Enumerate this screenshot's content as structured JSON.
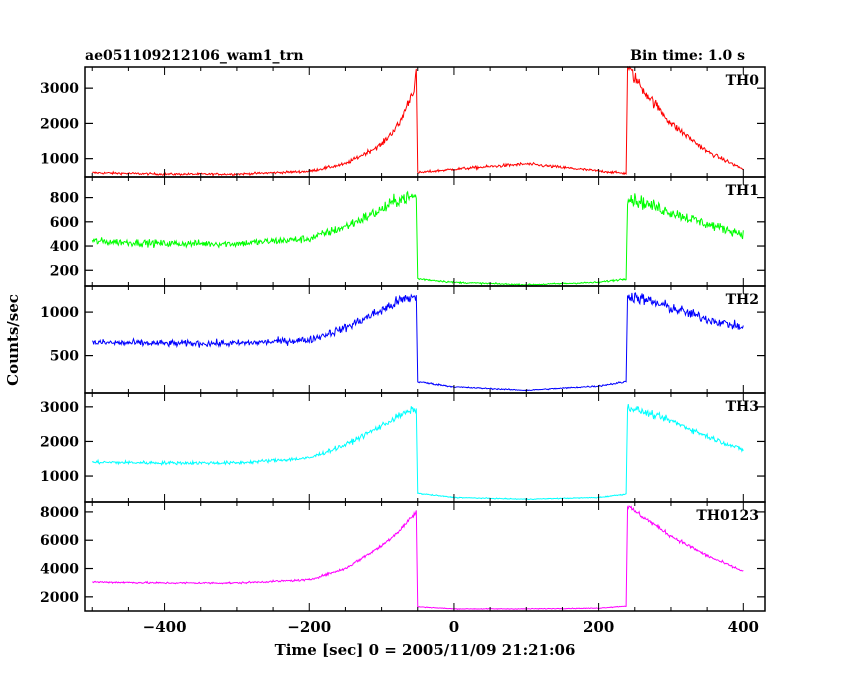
{
  "header": {
    "title": "ae051109212106_wam1_trn",
    "bin_time": "Bin time: 1.0 s"
  },
  "axes": {
    "xlabel": "Time [sec] 0 = 2005/11/09 21:21:06",
    "ylabel": "Counts/sec"
  },
  "chart_data": {
    "type": "line",
    "title": "ae051109212106_wam1_trn",
    "xlabel": "Time [sec] 0 = 2005/11/09 21:21:06",
    "ylabel": "Counts/sec",
    "xlim": [
      -510,
      430
    ],
    "x_ticks": [
      -400,
      -200,
      0,
      200,
      400
    ],
    "x_start": -500,
    "x_end": 400,
    "bin_time_s": 1.0,
    "panels": [
      {
        "name": "TH0",
        "color": "#ff0000",
        "ylim": [
          480,
          3600
        ],
        "yticks": [
          1000,
          2000,
          3000
        ],
        "noise": 0.055,
        "profile": [
          [
            -500,
            600
          ],
          [
            -400,
            560
          ],
          [
            -300,
            560
          ],
          [
            -200,
            640
          ],
          [
            -150,
            850
          ],
          [
            -100,
            1400
          ],
          [
            -75,
            2000
          ],
          [
            -55,
            3000
          ],
          [
            -52,
            3500
          ],
          [
            -50,
            600
          ],
          [
            0,
            700
          ],
          [
            100,
            850
          ],
          [
            200,
            650
          ],
          [
            238,
            580
          ],
          [
            240,
            3600
          ],
          [
            260,
            3000
          ],
          [
            300,
            2000
          ],
          [
            350,
            1200
          ],
          [
            400,
            700
          ]
        ]
      },
      {
        "name": "TH1",
        "color": "#00ff00",
        "ylim": [
          70,
          970
        ],
        "yticks": [
          200,
          400,
          600,
          800
        ],
        "noise": 0.07,
        "profile": [
          [
            -500,
            440
          ],
          [
            -400,
            420
          ],
          [
            -300,
            420
          ],
          [
            -200,
            460
          ],
          [
            -150,
            560
          ],
          [
            -100,
            700
          ],
          [
            -75,
            790
          ],
          [
            -52,
            810
          ],
          [
            -50,
            130
          ],
          [
            0,
            100
          ],
          [
            100,
            80
          ],
          [
            200,
            100
          ],
          [
            238,
            130
          ],
          [
            240,
            800
          ],
          [
            300,
            680
          ],
          [
            350,
            580
          ],
          [
            400,
            500
          ]
        ]
      },
      {
        "name": "TH2",
        "color": "#0000ff",
        "ylim": [
          70,
          1300
        ],
        "yticks": [
          500,
          1000
        ],
        "noise": 0.06,
        "profile": [
          [
            -500,
            650
          ],
          [
            -400,
            640
          ],
          [
            -300,
            640
          ],
          [
            -200,
            680
          ],
          [
            -150,
            820
          ],
          [
            -100,
            1020
          ],
          [
            -75,
            1130
          ],
          [
            -52,
            1180
          ],
          [
            -50,
            200
          ],
          [
            0,
            140
          ],
          [
            100,
            100
          ],
          [
            200,
            150
          ],
          [
            238,
            200
          ],
          [
            240,
            1200
          ],
          [
            300,
            1050
          ],
          [
            350,
            920
          ],
          [
            400,
            820
          ]
        ]
      },
      {
        "name": "TH3",
        "color": "#00ffff",
        "ylim": [
          250,
          3400
        ],
        "yticks": [
          1000,
          2000,
          3000
        ],
        "noise": 0.035,
        "profile": [
          [
            -500,
            1400
          ],
          [
            -400,
            1380
          ],
          [
            -300,
            1380
          ],
          [
            -200,
            1520
          ],
          [
            -150,
            1900
          ],
          [
            -100,
            2450
          ],
          [
            -75,
            2750
          ],
          [
            -52,
            2950
          ],
          [
            -50,
            500
          ],
          [
            0,
            380
          ],
          [
            100,
            330
          ],
          [
            200,
            380
          ],
          [
            238,
            480
          ],
          [
            240,
            3000
          ],
          [
            300,
            2600
          ],
          [
            350,
            2150
          ],
          [
            400,
            1750
          ]
        ]
      },
      {
        "name": "TH0123",
        "color": "#ff00ff",
        "ylim": [
          1000,
          8700
        ],
        "yticks": [
          2000,
          4000,
          6000,
          8000
        ],
        "noise": 0.022,
        "profile": [
          [
            -500,
            3050
          ],
          [
            -400,
            2980
          ],
          [
            -300,
            2980
          ],
          [
            -200,
            3200
          ],
          [
            -150,
            4000
          ],
          [
            -100,
            5600
          ],
          [
            -75,
            6700
          ],
          [
            -52,
            8000
          ],
          [
            -50,
            1300
          ],
          [
            0,
            1150
          ],
          [
            100,
            1150
          ],
          [
            200,
            1200
          ],
          [
            238,
            1350
          ],
          [
            240,
            8400
          ],
          [
            300,
            6300
          ],
          [
            350,
            4900
          ],
          [
            400,
            3800
          ]
        ]
      }
    ]
  }
}
